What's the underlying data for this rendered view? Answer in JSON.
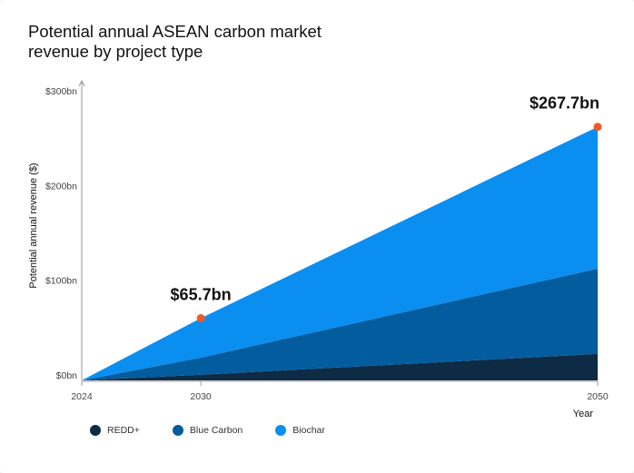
{
  "chart_data": {
    "type": "area",
    "stacked": true,
    "title": "Potential annual ASEAN carbon market revenue by project type",
    "xlabel": "Year",
    "ylabel": "Potential annual revenue ($)",
    "x": [
      2024,
      2030,
      2050
    ],
    "xlim": [
      2024,
      2050
    ],
    "ylim": [
      0,
      300
    ],
    "yticks": [
      0,
      100,
      200,
      300
    ],
    "ytick_labels": [
      "$0bn",
      "$100bn",
      "$200bn",
      "$300bn"
    ],
    "xtick_labels": [
      "2024",
      "2030",
      "2050"
    ],
    "series": [
      {
        "name": "REDD+",
        "values": [
          0,
          6,
          28
        ],
        "color": "#0d2b45"
      },
      {
        "name": "Blue Carbon",
        "values": [
          0,
          18,
          90
        ],
        "color": "#035c9e"
      },
      {
        "name": "Biochar",
        "values": [
          0,
          41.7,
          149.7
        ],
        "color": "#0a8ef0"
      }
    ],
    "annotations": [
      {
        "x": 2030,
        "y": 65.7,
        "label": "$65.7bn"
      },
      {
        "x": 2050,
        "y": 267.7,
        "label": "$267.7bn"
      }
    ],
    "marker_color": "#f05a28",
    "legend_position": "bottom-left",
    "grid": false
  }
}
